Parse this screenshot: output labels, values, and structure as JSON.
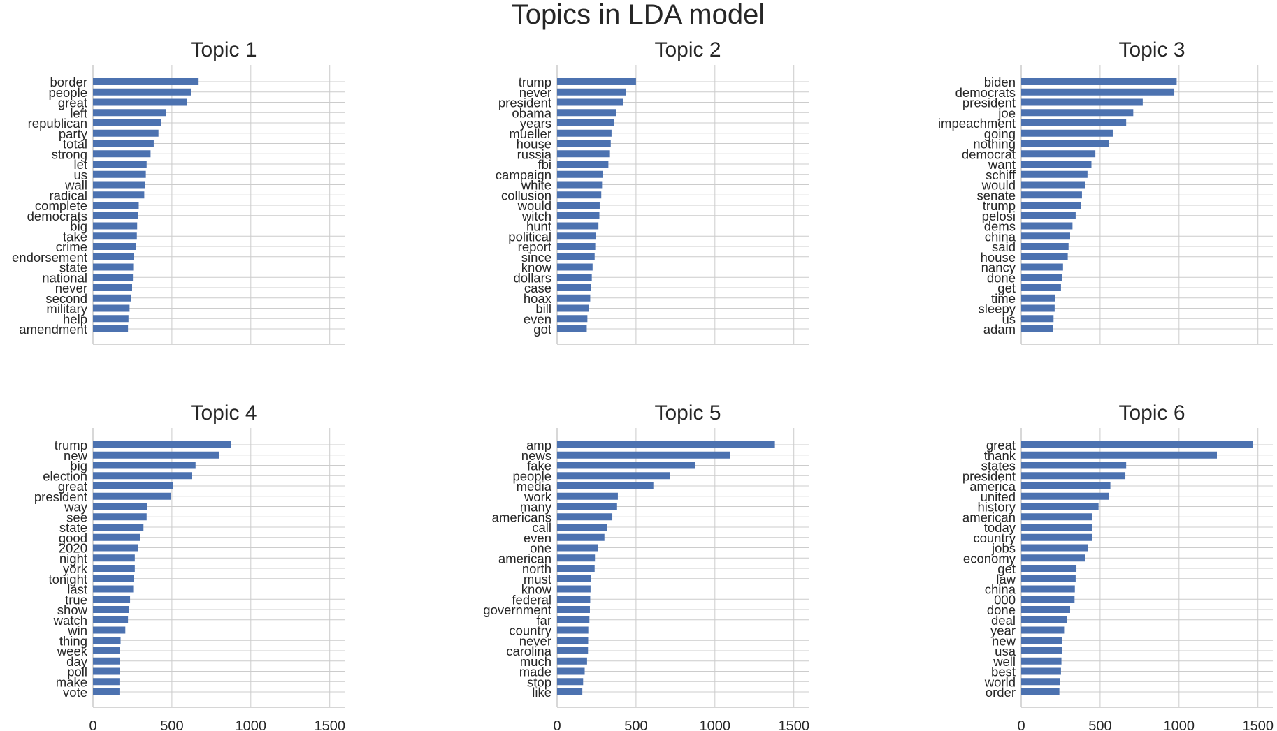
{
  "figure": {
    "title": "Topics in LDA model",
    "bar_color": "#4c72b0",
    "grid_color": "#cccccc",
    "text_color": "#262626"
  },
  "chart_data": [
    {
      "type": "bar",
      "orientation": "horizontal",
      "title": "Topic 1",
      "xlim": [
        0,
        1550
      ],
      "xticks": [
        0,
        500,
        1000,
        1500
      ],
      "grid": true,
      "show_xtick_labels": false,
      "categories": [
        "border",
        "people",
        "great",
        "left",
        "republican",
        "party",
        "total",
        "strong",
        "let",
        "us",
        "wall",
        "radical",
        "complete",
        "democrats",
        "big",
        "take",
        "crime",
        "endorsement",
        "state",
        "national",
        "never",
        "second",
        "military",
        "help",
        "amendment"
      ],
      "values": [
        665,
        620,
        595,
        465,
        430,
        415,
        385,
        365,
        340,
        335,
        330,
        325,
        290,
        285,
        280,
        278,
        272,
        260,
        255,
        253,
        248,
        240,
        232,
        225,
        222
      ]
    },
    {
      "type": "bar",
      "orientation": "horizontal",
      "title": "Topic 2",
      "xlim": [
        0,
        1550
      ],
      "xticks": [
        0,
        500,
        1000,
        1500
      ],
      "grid": true,
      "show_xtick_labels": false,
      "categories": [
        "trump",
        "never",
        "president",
        "obama",
        "years",
        "mueller",
        "house",
        "russia",
        "fbi",
        "campaign",
        "white",
        "collusion",
        "would",
        "witch",
        "hunt",
        "political",
        "report",
        "since",
        "know",
        "dollars",
        "case",
        "hoax",
        "bill",
        "even",
        "got"
      ],
      "values": [
        500,
        435,
        420,
        375,
        360,
        345,
        340,
        335,
        325,
        290,
        285,
        280,
        270,
        268,
        262,
        245,
        242,
        238,
        225,
        220,
        217,
        210,
        200,
        192,
        188
      ]
    },
    {
      "type": "bar",
      "orientation": "horizontal",
      "title": "Topic 3",
      "xlim": [
        0,
        1550
      ],
      "xticks": [
        0,
        500,
        1000,
        1500
      ],
      "grid": true,
      "show_xtick_labels": false,
      "categories": [
        "biden",
        "democrats",
        "president",
        "joe",
        "impeachment",
        "going",
        "nothing",
        "democrat",
        "want",
        "schiff",
        "would",
        "senate",
        "trump",
        "pelosi",
        "dems",
        "china",
        "said",
        "house",
        "nancy",
        "done",
        "get",
        "time",
        "sleepy",
        "us",
        "adam"
      ],
      "values": [
        985,
        970,
        770,
        710,
        665,
        580,
        555,
        470,
        445,
        420,
        405,
        385,
        380,
        345,
        325,
        310,
        300,
        295,
        265,
        258,
        252,
        215,
        212,
        205,
        200
      ]
    },
    {
      "type": "bar",
      "orientation": "horizontal",
      "title": "Topic 4",
      "xlim": [
        0,
        1550
      ],
      "xticks": [
        0,
        500,
        1000,
        1500
      ],
      "grid": true,
      "show_xtick_labels": true,
      "categories": [
        "trump",
        "new",
        "big",
        "election",
        "great",
        "president",
        "way",
        "see",
        "state",
        "good",
        "2020",
        "night",
        "york",
        "tonight",
        "last",
        "true",
        "show",
        "watch",
        "win",
        "thing",
        "week",
        "day",
        "poll",
        "make",
        "vote"
      ],
      "values": [
        875,
        800,
        650,
        625,
        505,
        495,
        345,
        340,
        320,
        300,
        285,
        265,
        265,
        258,
        255,
        235,
        228,
        222,
        205,
        175,
        172,
        170,
        170,
        168,
        168
      ]
    },
    {
      "type": "bar",
      "orientation": "horizontal",
      "title": "Topic 5",
      "xlim": [
        0,
        1550
      ],
      "xticks": [
        0,
        500,
        1000,
        1500
      ],
      "grid": true,
      "show_xtick_labels": true,
      "categories": [
        "amp",
        "news",
        "fake",
        "people",
        "media",
        "work",
        "many",
        "americans",
        "call",
        "even",
        "one",
        "american",
        "north",
        "must",
        "know",
        "federal",
        "government",
        "far",
        "country",
        "never",
        "carolina",
        "much",
        "made",
        "stop",
        "like"
      ],
      "values": [
        1380,
        1095,
        875,
        715,
        610,
        385,
        380,
        350,
        315,
        300,
        260,
        240,
        238,
        215,
        212,
        210,
        208,
        205,
        198,
        197,
        196,
        190,
        175,
        165,
        160
      ]
    },
    {
      "type": "bar",
      "orientation": "horizontal",
      "title": "Topic 6",
      "xlim": [
        0,
        1550
      ],
      "xticks": [
        0,
        500,
        1000,
        1500
      ],
      "grid": true,
      "show_xtick_labels": true,
      "categories": [
        "great",
        "thank",
        "states",
        "president",
        "america",
        "united",
        "history",
        "american",
        "today",
        "country",
        "jobs",
        "economy",
        "get",
        "law",
        "china",
        "000",
        "done",
        "deal",
        "year",
        "new",
        "usa",
        "well",
        "best",
        "world",
        "order"
      ],
      "values": [
        1470,
        1240,
        665,
        660,
        565,
        555,
        490,
        450,
        450,
        450,
        425,
        405,
        350,
        345,
        340,
        338,
        310,
        290,
        272,
        260,
        258,
        255,
        252,
        248,
        242
      ]
    }
  ]
}
